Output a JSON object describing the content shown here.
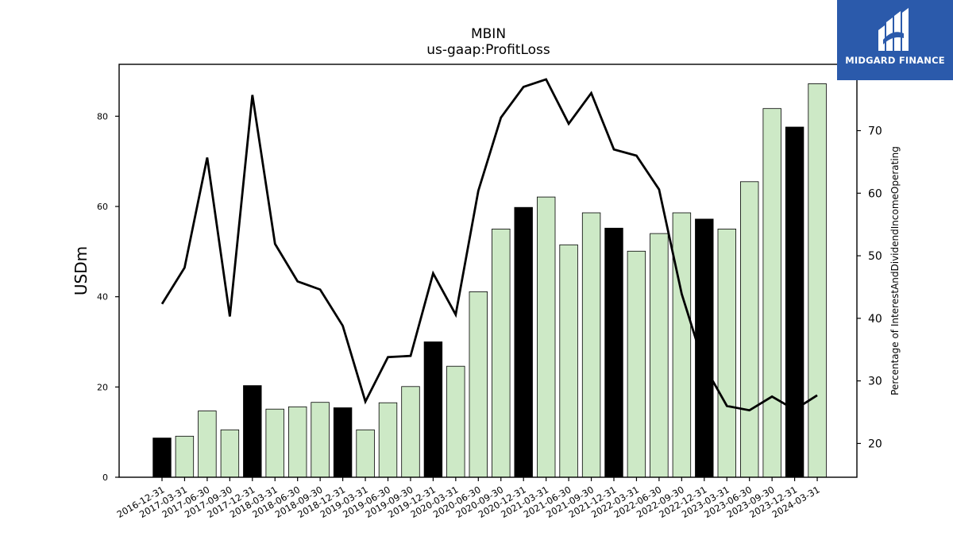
{
  "brand": {
    "name": "MIDGARD FINANCE",
    "bg_color": "#2b5aab",
    "text_color": "#ffffff"
  },
  "chart_data": {
    "type": "bar",
    "title": "MBIN",
    "subtitle": "us-gaap:ProfitLoss",
    "ylabel": "USDm",
    "y2label": "Percentage of InterestAndDividendIncomeOperating",
    "ylim": [
      0,
      91.5
    ],
    "y2lim": [
      14.6,
      80.6
    ],
    "yticks": [
      0,
      20,
      40,
      60,
      80
    ],
    "y2ticks": [
      20,
      30,
      40,
      50,
      60,
      70
    ],
    "grid": false,
    "categories": [
      "2016-12-31",
      "2017-03-31",
      "2017-06-30",
      "2017-09-30",
      "2017-12-31",
      "2018-03-31",
      "2018-06-30",
      "2018-09-30",
      "2018-12-31",
      "2019-03-31",
      "2019-06-30",
      "2019-09-30",
      "2019-12-31",
      "2020-03-31",
      "2020-06-30",
      "2020-09-30",
      "2020-12-31",
      "2021-03-31",
      "2021-06-30",
      "2021-09-30",
      "2021-12-31",
      "2022-03-31",
      "2022-06-30",
      "2022-09-30",
      "2022-12-31",
      "2023-03-31",
      "2023-06-30",
      "2023-09-30",
      "2023-12-31",
      "2024-03-31"
    ],
    "series": [
      {
        "kind": "bar",
        "axis": "left",
        "values": [
          8.7,
          9.1,
          14.7,
          10.5,
          20.3,
          15.1,
          15.6,
          16.6,
          15.4,
          10.5,
          16.5,
          20.1,
          30.0,
          24.6,
          41.1,
          55.0,
          59.8,
          62.1,
          51.5,
          58.6,
          55.2,
          50.1,
          54.0,
          58.6,
          57.2,
          55.0,
          65.5,
          81.7,
          77.6,
          87.2
        ],
        "colors": [
          "#000000",
          "#cde9c6",
          "#cde9c6",
          "#cde9c6",
          "#000000",
          "#cde9c6",
          "#cde9c6",
          "#cde9c6",
          "#000000",
          "#cde9c6",
          "#cde9c6",
          "#cde9c6",
          "#000000",
          "#cde9c6",
          "#cde9c6",
          "#cde9c6",
          "#000000",
          "#cde9c6",
          "#cde9c6",
          "#cde9c6",
          "#000000",
          "#cde9c6",
          "#cde9c6",
          "#cde9c6",
          "#000000",
          "#cde9c6",
          "#cde9c6",
          "#cde9c6",
          "#000000",
          "#cde9c6"
        ]
      },
      {
        "kind": "line",
        "axis": "right",
        "color": "#000000",
        "values": [
          42.3,
          48.1,
          65.7,
          40.3,
          75.7,
          51.9,
          45.9,
          44.6,
          38.8,
          26.7,
          33.8,
          34.0,
          47.2,
          40.6,
          60.4,
          72.1,
          77.0,
          78.2,
          71.1,
          76.0,
          67.0,
          66.0,
          60.6,
          43.9,
          32.4,
          26.0,
          25.3,
          27.5,
          25.4,
          27.7
        ]
      }
    ]
  }
}
